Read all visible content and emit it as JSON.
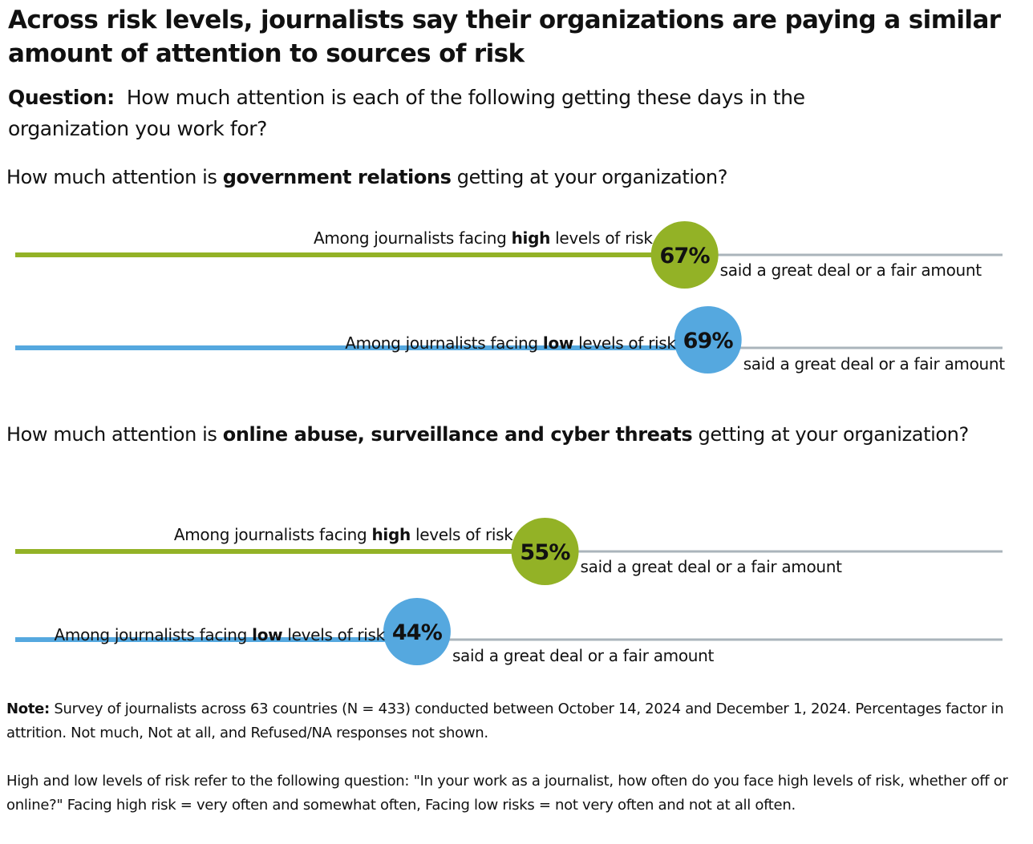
{
  "title": "Across risk levels, journalists say their organizations are paying a similar amount of attention to sources of risk",
  "question": {
    "prefix": "Question:",
    "text": "How much attention is each of the following getting these days in the organization you work for?"
  },
  "colors": {
    "high": "#93b226",
    "low": "#55a8df",
    "track": "#aab4bb"
  },
  "chart_data": [
    {
      "type": "bar",
      "question_prefix": "How much attention is ",
      "topic": "government relations",
      "question_suffix": " getting at your organization?",
      "series": [
        {
          "group_prefix": "Among journalists facing ",
          "group": "high",
          "group_suffix": " levels of risk",
          "value": 67,
          "label": "67%",
          "suffix": "said a great deal or a fair amount",
          "color": "#93b226"
        },
        {
          "group_prefix": "Among journalists facing ",
          "group": "low",
          "group_suffix": " levels of risk",
          "value": 69,
          "label": "69%",
          "suffix": "said a great deal or a fair amount",
          "color": "#55a8df"
        }
      ]
    },
    {
      "type": "bar",
      "question_prefix": "How much attention is ",
      "topic": "online abuse, surveillance and cyber threats",
      "question_suffix": " getting at your organization?",
      "series": [
        {
          "group_prefix": "Among journalists facing ",
          "group": "high",
          "group_suffix": " levels of risk",
          "value": 55,
          "label": "55%",
          "suffix": "said a great deal or a fair amount",
          "color": "#93b226"
        },
        {
          "group_prefix": "Among journalists facing ",
          "group": "low",
          "group_suffix": " levels of risk",
          "value": 44,
          "label": "44%",
          "suffix": "said a great deal or a fair amount",
          "color": "#55a8df"
        }
      ]
    }
  ],
  "note": {
    "prefix": "Note:",
    "line1": "Survey of journalists across 63 countries (N = 433) conducted between October 14, 2024 and December 1, 2024. Percentages factor in attrition. Not much, Not at all, and Refused/NA responses not shown.",
    "line2": "High and low levels of risk refer to the following question: \"In your work as a journalist, how often do you face high levels of risk, whether off or online?\" Facing high risk = very often and somewhat often, Facing low risks = not very often and not at all often."
  }
}
